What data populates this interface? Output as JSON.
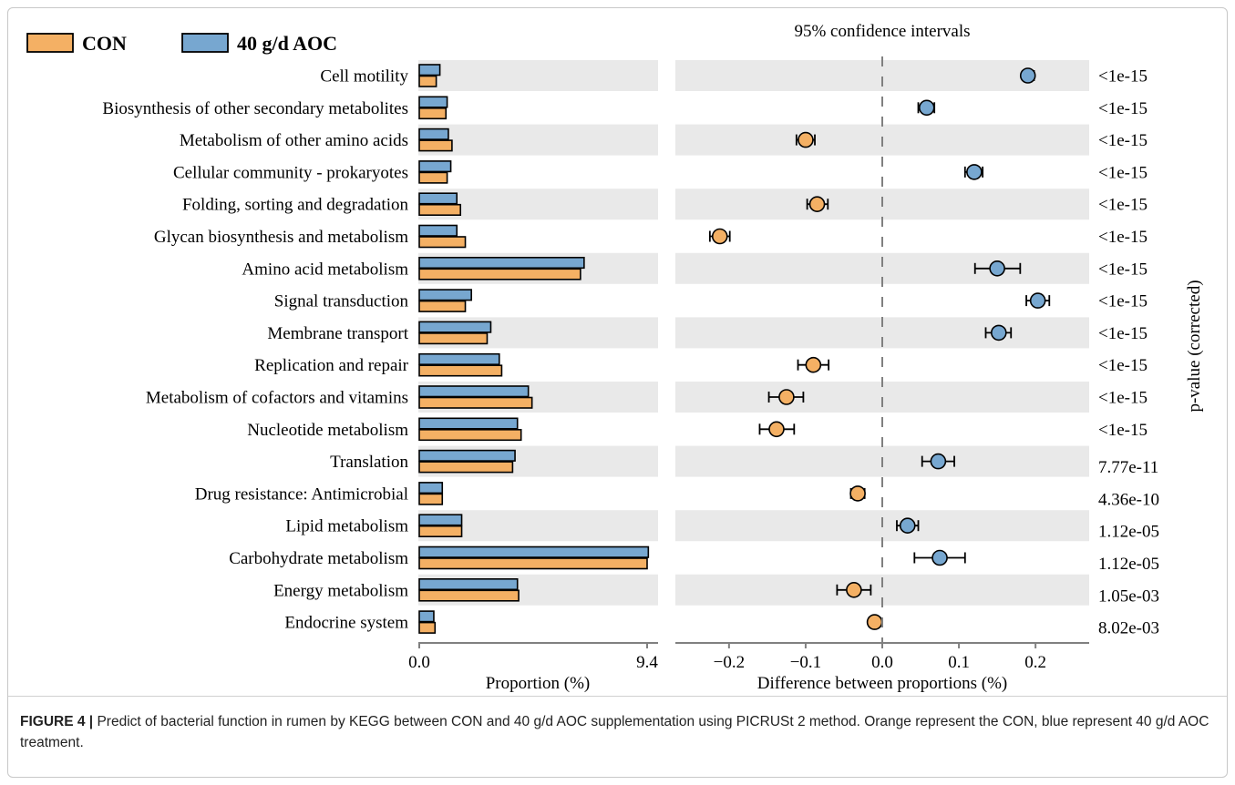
{
  "legend": [
    {
      "label": "CON",
      "color": "#F4B064"
    },
    {
      "label": "40 g/d AOC",
      "color": "#77A7D0"
    }
  ],
  "caption": {
    "figure_label": "FIGURE 4 |",
    "text": "Predict of bacterial function in rumen by KEGG between CON and 40 g/d AOC supplementation using PICRUSt 2 method. Orange represent the CON, blue represent 40 g/d AOC treatment."
  },
  "chart_data": {
    "type": "extended-error-bar",
    "categories": [
      "Cell motility",
      "Biosynthesis of other secondary metabolites",
      "Metabolism of other amino acids",
      "Cellular community - prokaryotes",
      "Folding, sorting and degradation",
      "Glycan biosynthesis and metabolism",
      "Amino acid metabolism",
      "Signal transduction",
      "Membrane transport",
      "Replication and repair",
      "Metabolism of cofactors and vitamins",
      "Nucleotide metabolism",
      "Translation",
      "Drug resistance: Antimicrobial",
      "Lipid metabolism",
      "Carbohydrate metabolism",
      "Energy metabolism",
      "Endocrine system"
    ],
    "bar_panel": {
      "xlabel": "Proportion (%)",
      "xlim": [
        0.0,
        9.4
      ],
      "tick_labels": [
        "0.0",
        "9.4"
      ],
      "series": [
        {
          "name": "40 g/d AOC",
          "color": "#77A7D0",
          "values": [
            0.85,
            1.15,
            1.2,
            1.3,
            1.55,
            1.55,
            6.8,
            2.15,
            2.95,
            3.3,
            4.5,
            4.05,
            3.95,
            0.95,
            1.75,
            9.45,
            4.05,
            0.6
          ]
        },
        {
          "name": "CON",
          "color": "#F4B064",
          "values": [
            0.7,
            1.1,
            1.35,
            1.15,
            1.7,
            1.9,
            6.65,
            1.9,
            2.8,
            3.4,
            4.65,
            4.2,
            3.85,
            0.95,
            1.75,
            9.4,
            4.1,
            0.65
          ]
        }
      ]
    },
    "diff_panel": {
      "title": "95% confidence intervals",
      "xlabel": "Difference between proportions (%)",
      "xlim": [
        -0.27,
        0.27
      ],
      "ticks": [
        -0.2,
        -0.1,
        0.0,
        0.1,
        0.2
      ],
      "tick_labels": [
        "−0.2",
        "−0.1",
        "0.0",
        "0.1",
        "0.2"
      ],
      "points": [
        {
          "diff": 0.19,
          "lo": 0.183,
          "hi": 0.198,
          "group": "40 g/d AOC"
        },
        {
          "diff": 0.058,
          "lo": 0.047,
          "hi": 0.068,
          "group": "40 g/d AOC"
        },
        {
          "diff": -0.1,
          "lo": -0.112,
          "hi": -0.088,
          "group": "CON"
        },
        {
          "diff": 0.12,
          "lo": 0.108,
          "hi": 0.131,
          "group": "40 g/d AOC"
        },
        {
          "diff": -0.085,
          "lo": -0.098,
          "hi": -0.071,
          "group": "CON"
        },
        {
          "diff": -0.212,
          "lo": -0.225,
          "hi": -0.199,
          "group": "CON"
        },
        {
          "diff": 0.15,
          "lo": 0.121,
          "hi": 0.18,
          "group": "40 g/d AOC"
        },
        {
          "diff": 0.203,
          "lo": 0.188,
          "hi": 0.218,
          "group": "40 g/d AOC"
        },
        {
          "diff": 0.152,
          "lo": 0.135,
          "hi": 0.168,
          "group": "40 g/d AOC"
        },
        {
          "diff": -0.09,
          "lo": -0.11,
          "hi": -0.07,
          "group": "CON"
        },
        {
          "diff": -0.125,
          "lo": -0.148,
          "hi": -0.103,
          "group": "CON"
        },
        {
          "diff": -0.138,
          "lo": -0.16,
          "hi": -0.115,
          "group": "CON"
        },
        {
          "diff": 0.073,
          "lo": 0.052,
          "hi": 0.094,
          "group": "40 g/d AOC"
        },
        {
          "diff": -0.032,
          "lo": -0.041,
          "hi": -0.023,
          "group": "CON"
        },
        {
          "diff": 0.033,
          "lo": 0.019,
          "hi": 0.047,
          "group": "40 g/d AOC"
        },
        {
          "diff": 0.075,
          "lo": 0.042,
          "hi": 0.108,
          "group": "40 g/d AOC"
        },
        {
          "diff": -0.037,
          "lo": -0.059,
          "hi": -0.015,
          "group": "CON"
        },
        {
          "diff": -0.01,
          "lo": -0.017,
          "hi": -0.003,
          "group": "CON"
        }
      ]
    },
    "pvalue_label": "p-value (corrected)",
    "pvalues": [
      "<1e-15",
      "<1e-15",
      "<1e-15",
      "<1e-15",
      "<1e-15",
      "<1e-15",
      "<1e-15",
      "<1e-15",
      "<1e-15",
      "<1e-15",
      "<1e-15",
      "<1e-15",
      "7.77e-11",
      "4.36e-10",
      "1.12e-05",
      "1.12e-05",
      "1.05e-03",
      "8.02e-03"
    ]
  }
}
